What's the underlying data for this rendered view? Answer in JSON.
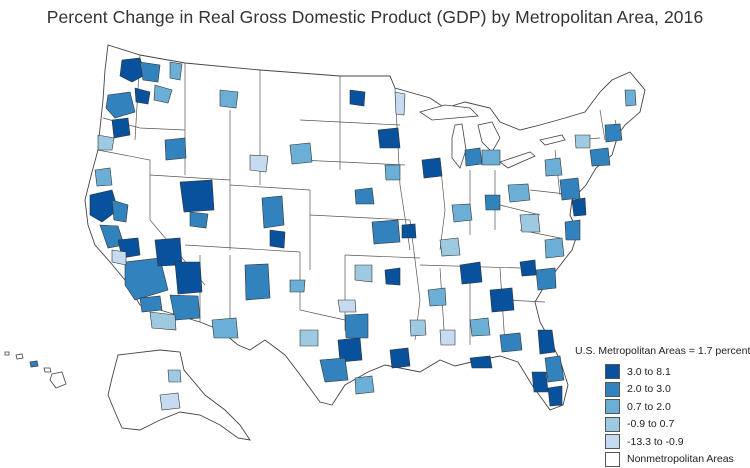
{
  "title": "Percent Change in Real Gross Domestic Product (GDP) by Metropolitan Area, 2016",
  "legend": {
    "title": "U.S. Metropolitan Areas = 1.7 percent",
    "items": [
      {
        "label": "3.0 to 8.1",
        "color": "#08519c"
      },
      {
        "label": "2.0 to 3.0",
        "color": "#3182bd"
      },
      {
        "label": "0.7 to 2.0",
        "color": "#6baed6"
      },
      {
        "label": "-0.9 to 0.7",
        "color": "#9ecae1"
      },
      {
        "label": "-13.3 to -0.9",
        "color": "#c6dbef"
      },
      {
        "label": "Nonmetropolitan Areas",
        "color": "#ffffff"
      }
    ]
  },
  "colors": {
    "state_border": "#444444",
    "metro_border": "#333333",
    "land": "#ffffff"
  }
}
